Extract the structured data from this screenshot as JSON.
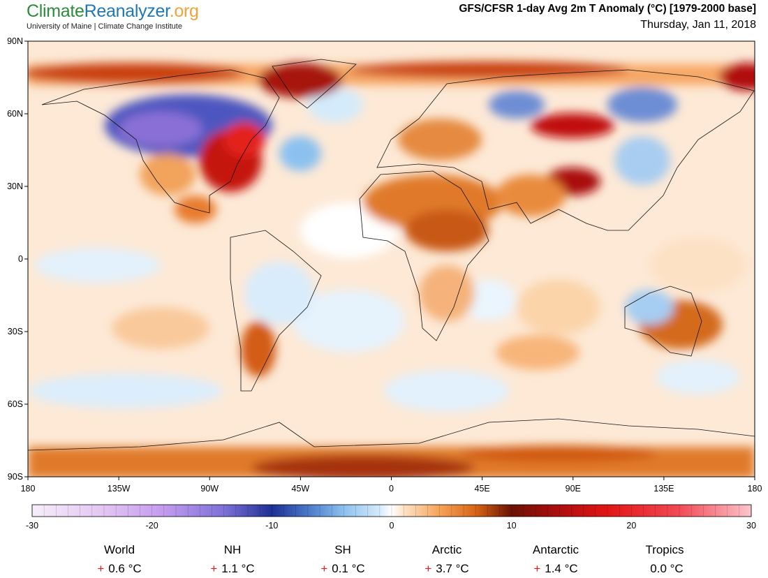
{
  "header": {
    "logo": {
      "part1": "Climate",
      "part2": "Reanalyzer",
      "part3": ".org"
    },
    "subtitle": "University of Maine | Climate Change Institute",
    "title": "GFS/CFSR 1-day Avg 2m T Anomaly (°C) [1979-2000 base]",
    "date": "Thursday, Jan 11, 2018"
  },
  "map": {
    "lat_labels": [
      "90N",
      "60N",
      "30N",
      "0",
      "30S",
      "60S",
      "90S"
    ],
    "lon_labels": [
      "180",
      "135W",
      "90W",
      "45W",
      "0",
      "45E",
      "90E",
      "135E",
      "180"
    ]
  },
  "colorbar": {
    "range": [
      -30,
      30
    ],
    "tick_labels": [
      "-30",
      "-20",
      "-10",
      "0",
      "10",
      "20",
      "30"
    ],
    "stops": [
      {
        "v": -30,
        "c": "#f6eefa"
      },
      {
        "v": -24,
        "c": "#e3c5f2"
      },
      {
        "v": -19,
        "c": "#c39bef"
      },
      {
        "v": -14,
        "c": "#7e71d8"
      },
      {
        "v": -10,
        "c": "#1e2f95"
      },
      {
        "v": -7,
        "c": "#4a78c8"
      },
      {
        "v": -4,
        "c": "#8cc1ef"
      },
      {
        "v": -1,
        "c": "#d4ebfb"
      },
      {
        "v": 0,
        "c": "#ffffff"
      },
      {
        "v": 1,
        "c": "#fde3c6"
      },
      {
        "v": 4,
        "c": "#f6a35a"
      },
      {
        "v": 7,
        "c": "#d76515"
      },
      {
        "v": 10,
        "c": "#6b1204"
      },
      {
        "v": 13,
        "c": "#a00d0d"
      },
      {
        "v": 18,
        "c": "#e21515"
      },
      {
        "v": 24,
        "c": "#f24a55"
      },
      {
        "v": 30,
        "c": "#fcc6cc"
      }
    ]
  },
  "stats": [
    {
      "label": "World",
      "sign": "+",
      "value": "0.6 °C"
    },
    {
      "label": "NH",
      "sign": "+",
      "value": "1.1 °C"
    },
    {
      "label": "SH",
      "sign": "+",
      "value": "0.1 °C"
    },
    {
      "label": "Arctic",
      "sign": "+",
      "value": "3.7 °C"
    },
    {
      "label": "Antarctic",
      "sign": "+",
      "value": "1.4 °C"
    },
    {
      "label": "Tropics",
      "sign": "",
      "value": "0.0 °C"
    }
  ]
}
